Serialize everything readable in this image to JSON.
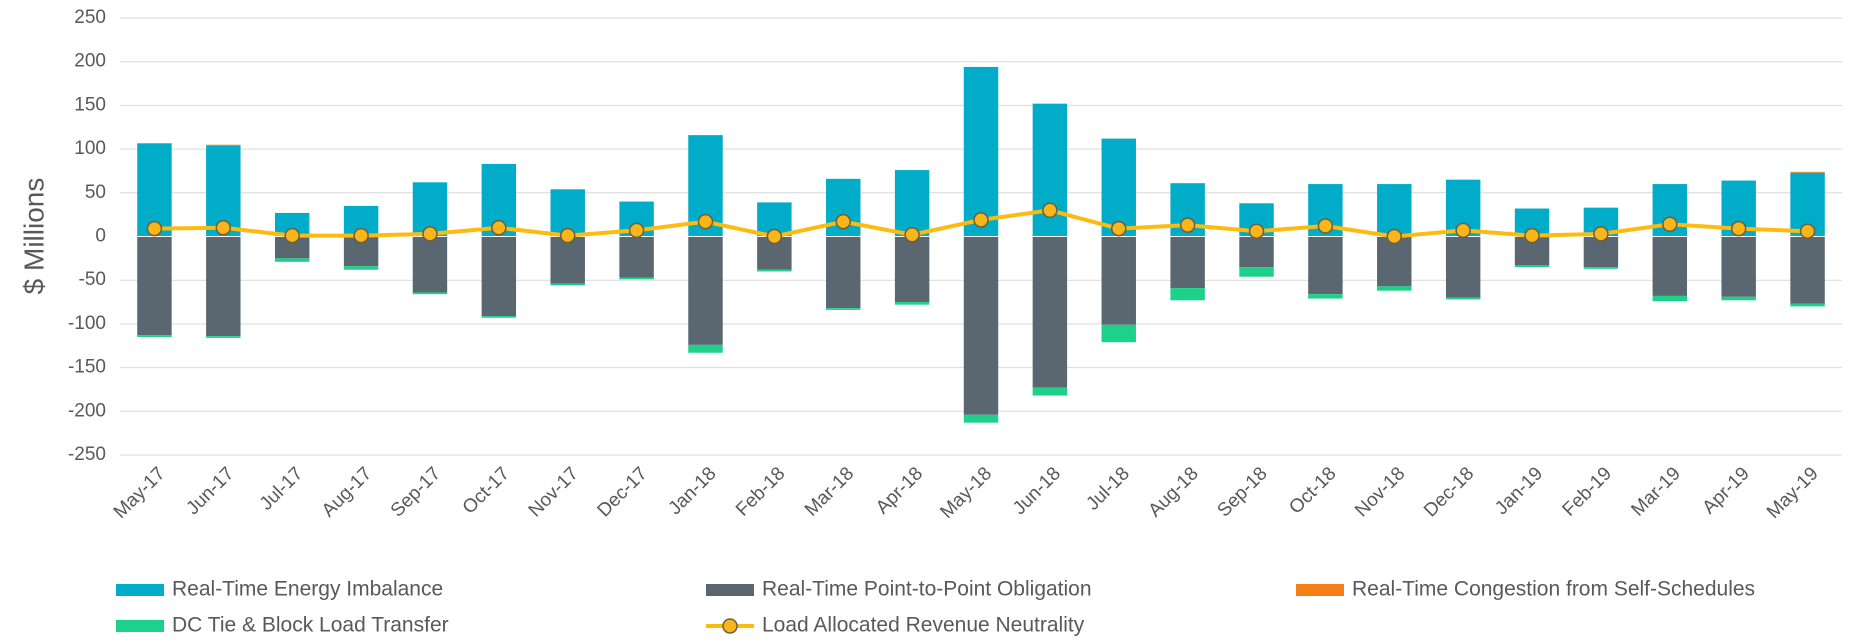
{
  "chart_data": {
    "type": "bar",
    "stacked": true,
    "y_label": "$ Millions",
    "categories": [
      "May-17",
      "Jun-17",
      "Jul-17",
      "Aug-17",
      "Sep-17",
      "Oct-17",
      "Nov-17",
      "Dec-17",
      "Jan-18",
      "Feb-18",
      "Mar-18",
      "Apr-18",
      "May-18",
      "Jun-18",
      "Jul-18",
      "Aug-18",
      "Sep-18",
      "Oct-18",
      "Nov-18",
      "Dec-18",
      "Jan-19",
      "Feb-19",
      "Mar-19",
      "Apr-19",
      "May-19"
    ],
    "series": [
      {
        "name": "Real-Time Energy Imbalance",
        "type": "bar",
        "color": "#00acc8",
        "values": [
          106,
          104,
          27,
          35,
          62,
          83,
          54,
          40,
          116,
          39,
          66,
          76,
          194,
          152,
          112,
          61,
          38,
          60,
          60,
          65,
          32,
          33,
          60,
          64,
          73
        ]
      },
      {
        "name": "Real-Time Point-to-Point Obligation",
        "type": "bar",
        "color": "#5a6670",
        "values": [
          -113,
          -114,
          -25,
          -34,
          -64,
          -91,
          -54,
          -47,
          -124,
          -38,
          -82,
          -75,
          -204,
          -173,
          -101,
          -59,
          -35,
          -66,
          -57,
          -70,
          -33,
          -35,
          -68,
          -69,
          -77
        ]
      },
      {
        "name": "Real-Time Congestion from Self-Schedules",
        "type": "bar",
        "color": "#f57f17",
        "values": [
          1,
          1,
          0,
          0,
          0,
          0,
          0,
          0,
          0,
          0,
          0,
          0,
          0,
          0,
          0,
          0,
          0,
          0,
          0,
          0,
          0,
          0,
          0,
          0,
          1
        ]
      },
      {
        "name": "DC Tie & Block Load Transfer",
        "type": "bar",
        "color": "#1dd18a",
        "values": [
          -2,
          -2,
          -4,
          -4,
          -2,
          -2,
          -2,
          -2,
          -9,
          -2,
          -2,
          -3,
          -9,
          -9,
          -20,
          -14,
          -11,
          -5,
          -5,
          -2,
          -2,
          -2,
          -6,
          -4,
          -3
        ]
      },
      {
        "name": "Load Allocated Revenue Neutrality",
        "type": "line",
        "color": "#fdbb11",
        "marker_color": "#f9b61a",
        "marker_edge": "#6b6040",
        "values": [
          9,
          10,
          1,
          1,
          3,
          10,
          1,
          7,
          17,
          0,
          17,
          2,
          19,
          30,
          9,
          13,
          6,
          12,
          0,
          7,
          1,
          3,
          14,
          9,
          6
        ]
      }
    ],
    "ylim": [
      -250,
      250
    ],
    "yticks": [
      -250,
      -200,
      -150,
      -100,
      -50,
      0,
      50,
      100,
      150,
      200,
      250
    ],
    "grid": true,
    "legend": "bottom"
  }
}
